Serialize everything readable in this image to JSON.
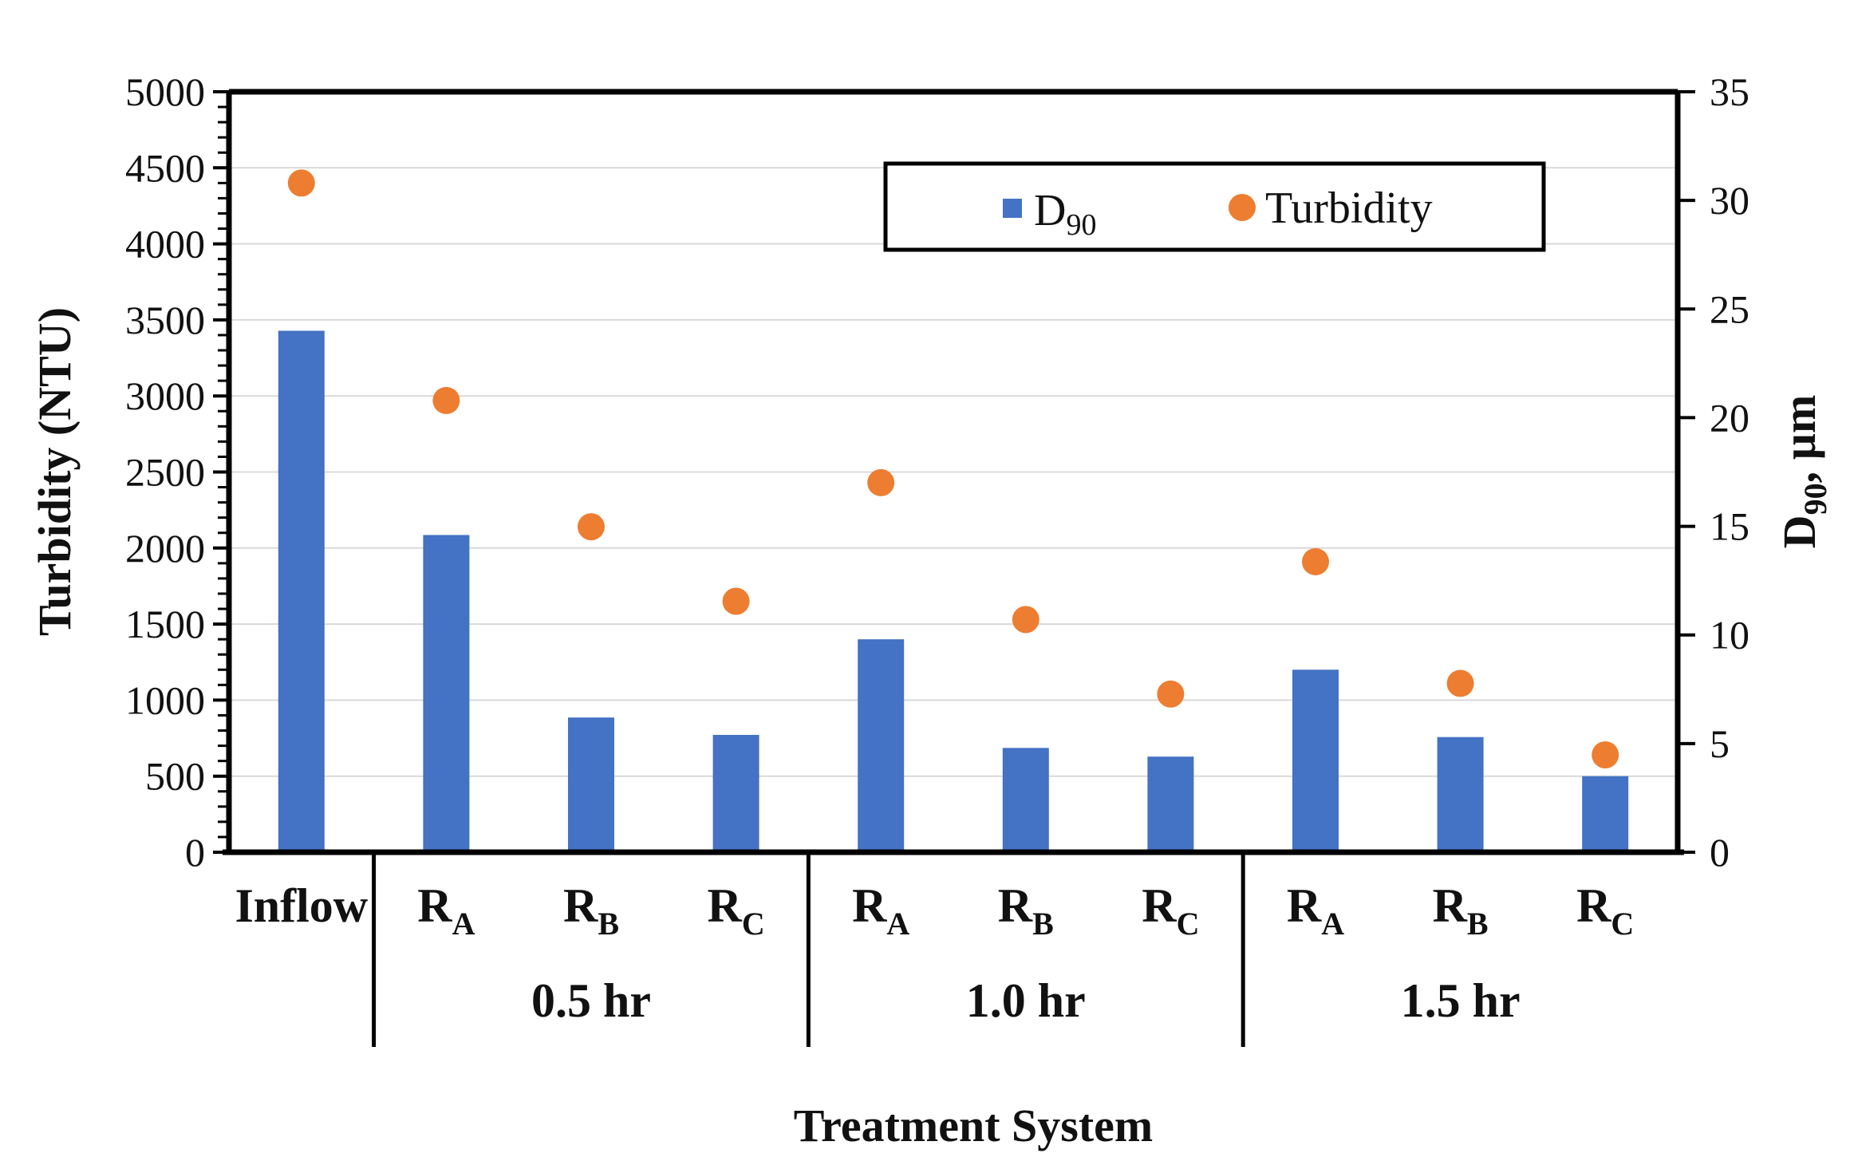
{
  "chart_data": {
    "type": "bar+scatter",
    "title": "",
    "xlabel": "Treatment System",
    "ylabel_left": "Turbidity (NTU)",
    "ylabel_right": {
      "main": "D",
      "sub": "90",
      "suffix": ", µm"
    },
    "ylim_left": [
      0,
      5000
    ],
    "yticks_left": [
      0,
      500,
      1000,
      1500,
      2000,
      2500,
      3000,
      3500,
      4000,
      4500,
      5000
    ],
    "ylim_right": [
      0,
      35
    ],
    "yticks_right": [
      0,
      5,
      10,
      15,
      20,
      25,
      30,
      35
    ],
    "categories": [
      {
        "main": "Inflow",
        "sub": ""
      },
      {
        "main": "R",
        "sub": "A"
      },
      {
        "main": "R",
        "sub": "B"
      },
      {
        "main": "R",
        "sub": "C"
      },
      {
        "main": "R",
        "sub": "A"
      },
      {
        "main": "R",
        "sub": "B"
      },
      {
        "main": "R",
        "sub": "C"
      },
      {
        "main": "R",
        "sub": "A"
      },
      {
        "main": "R",
        "sub": "B"
      },
      {
        "main": "R",
        "sub": "C"
      }
    ],
    "groups": [
      {
        "label": "0.5 hr",
        "start": 1,
        "end": 3
      },
      {
        "label": "1.0 hr",
        "start": 4,
        "end": 6
      },
      {
        "label": "1.5 hr",
        "start": 7,
        "end": 9
      }
    ],
    "series": [
      {
        "name": "D90",
        "legend_main": "D",
        "legend_sub": "90",
        "kind": "bar",
        "axis": "right",
        "color": "#4472C4",
        "values": [
          24.0,
          14.6,
          6.2,
          5.4,
          9.8,
          4.8,
          4.4,
          8.4,
          5.3,
          3.5
        ]
      },
      {
        "name": "Turbidity",
        "legend_main": "Turbidity",
        "legend_sub": "",
        "kind": "scatter",
        "axis": "left",
        "color": "#ED7D31",
        "values": [
          4400,
          2970,
          2140,
          1650,
          2430,
          1530,
          1040,
          1910,
          1110,
          640
        ]
      }
    ],
    "legend_position": "top-right",
    "grid": true
  }
}
